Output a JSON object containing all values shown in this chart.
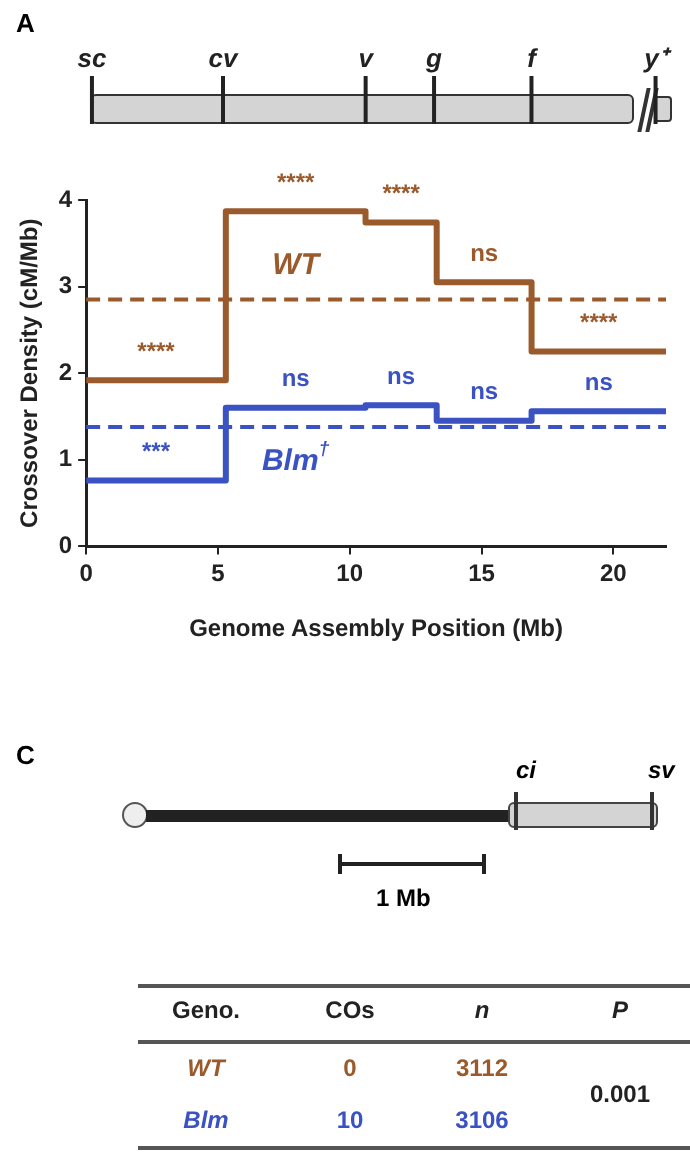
{
  "chart_data": [
    {
      "type": "step",
      "x": [
        0,
        5.3,
        10.6,
        13.3,
        16.9,
        22
      ],
      "series": [
        {
          "name": "WT",
          "color": "#9a5a2c",
          "values": [
            1.92,
            3.87,
            3.74,
            3.05,
            2.25,
            2.25
          ]
        },
        {
          "name": "Blm$^{†}$",
          "color": "#3a52c2",
          "values": [
            0.76,
            1.6,
            1.63,
            1.45,
            1.56,
            1.56
          ]
        }
      ],
      "xlabel": "Genome Assembly Position (Mb)",
      "ylabel": "Crossover Density (cM/Mb)",
      "xlim": [
        0,
        22
      ],
      "xticks": [
        0,
        5,
        10,
        15,
        20
      ],
      "ylim": [
        0,
        4
      ],
      "yticks": [
        0,
        1,
        2,
        3,
        4
      ],
      "ref_lines": [
        {
          "axis": "y",
          "value": 2.85,
          "color": "#9a5a2c",
          "line_style": "dashed"
        },
        {
          "axis": "y",
          "value": 1.38,
          "color": "#3a52c2",
          "line_style": "dashed"
        }
      ],
      "annotations": [
        "A",
        "sc",
        "cv",
        "v",
        "g",
        "f",
        "y⁺",
        "****",
        "****",
        "****",
        "ns",
        "****",
        "***",
        "ns",
        "ns",
        "ns",
        "ns"
      ],
      "grid": false,
      "marker": "none",
      "line_style": "solid"
    },
    {
      "type": "other",
      "legend_title": "Geno.",
      "categories": [
        "COs",
        "n"
      ],
      "series": [
        {
          "name": "WT",
          "color": "#9a5a2c",
          "values": [
            0,
            3112
          ]
        },
        {
          "name": "Blm",
          "color": "#3a52c2",
          "values": [
            10,
            3106
          ]
        }
      ],
      "data_labels": true,
      "annotations": [
        "C",
        "ci",
        "sv",
        "1 Mb",
        "P",
        "0.001"
      ]
    }
  ]
}
